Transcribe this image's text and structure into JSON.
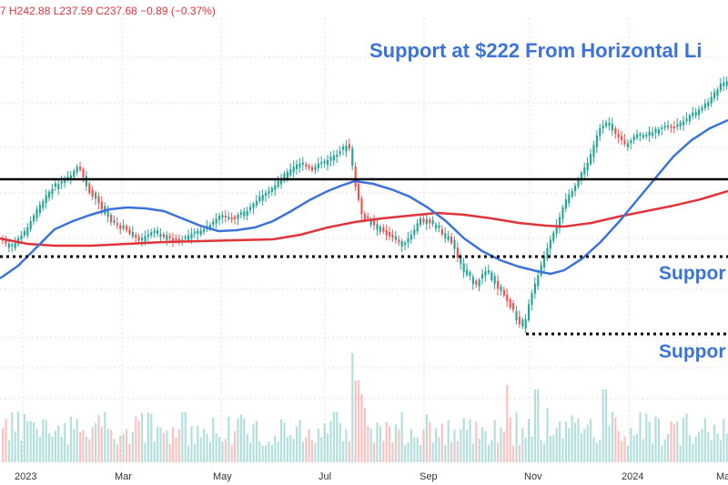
{
  "header": {
    "ohlc_text": "7 H242.88 L237.59 C237.68 −0.89 (−0.37%)"
  },
  "annotations": {
    "title": "Support at $222 From Horizontal Li",
    "support_1": "Suppor",
    "support_2": "Suppor"
  },
  "colors": {
    "up": "#26a69a",
    "down": "#ef5350",
    "ma50": "#3b73d8",
    "ma200": "#e0343a",
    "resistance": "#000000",
    "support": "#000000",
    "grid": "#f0d9d9",
    "annotation": "#3b73d8"
  },
  "chart_data": {
    "type": "candlestick",
    "title": "Support at $222 From Horizontal Li",
    "x_tick_labels": [
      "2023",
      "Mar",
      "May",
      "Jul",
      "Sep",
      "Nov",
      "2024",
      "Ma"
    ],
    "series": [
      {
        "name": "price",
        "kind": "candlestick"
      },
      {
        "name": "volume",
        "kind": "bar"
      },
      {
        "name": "",
        "kind": "line",
        "color": "blue"
      },
      {
        "name": "",
        "kind": "line",
        "color": "red"
      }
    ],
    "horizontal_lines": [
      {
        "style": "solid",
        "color": "black"
      },
      {
        "style": "dotted",
        "color": "black"
      },
      {
        "style": "dotted",
        "color": "black"
      }
    ],
    "grid": true
  }
}
